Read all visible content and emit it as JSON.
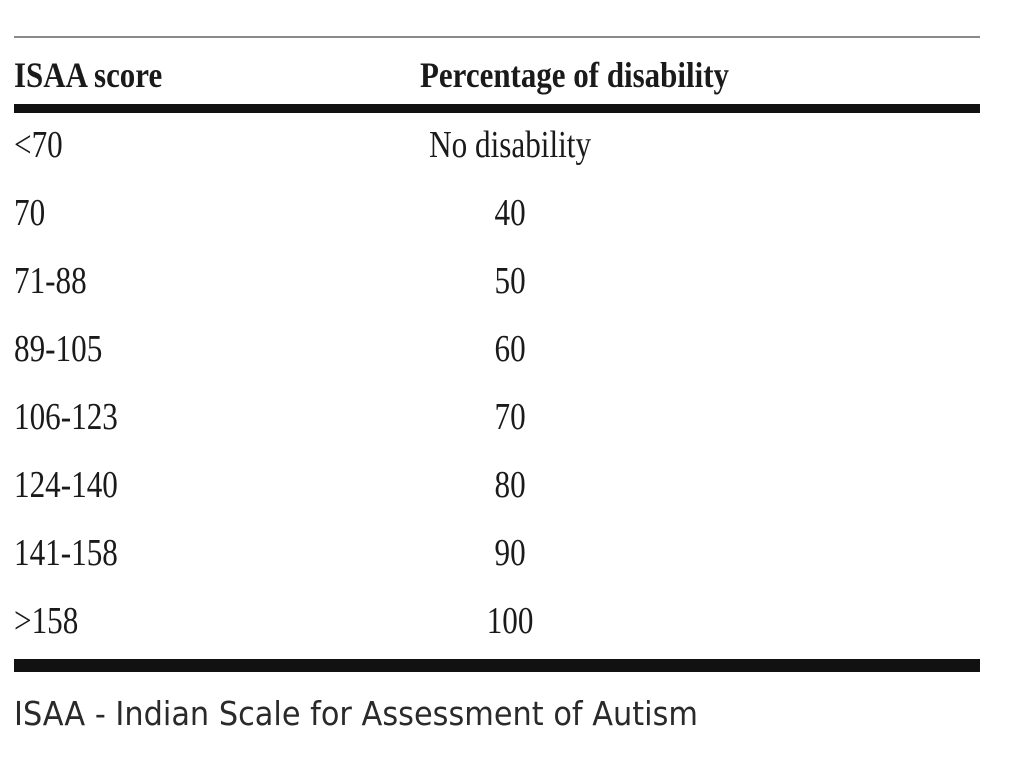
{
  "table": {
    "headers": [
      "ISAA score",
      "Percentage of disability"
    ],
    "rows": [
      [
        "<70",
        "No disability"
      ],
      [
        "70",
        "40"
      ],
      [
        "71-88",
        "50"
      ],
      [
        "89-105",
        "60"
      ],
      [
        "106-123",
        "70"
      ],
      [
        "124-140",
        "80"
      ],
      [
        "141-158",
        "90"
      ],
      [
        ">158",
        "100"
      ]
    ]
  },
  "footnote": "ISAA - Indian Scale for Assessment of Autism"
}
